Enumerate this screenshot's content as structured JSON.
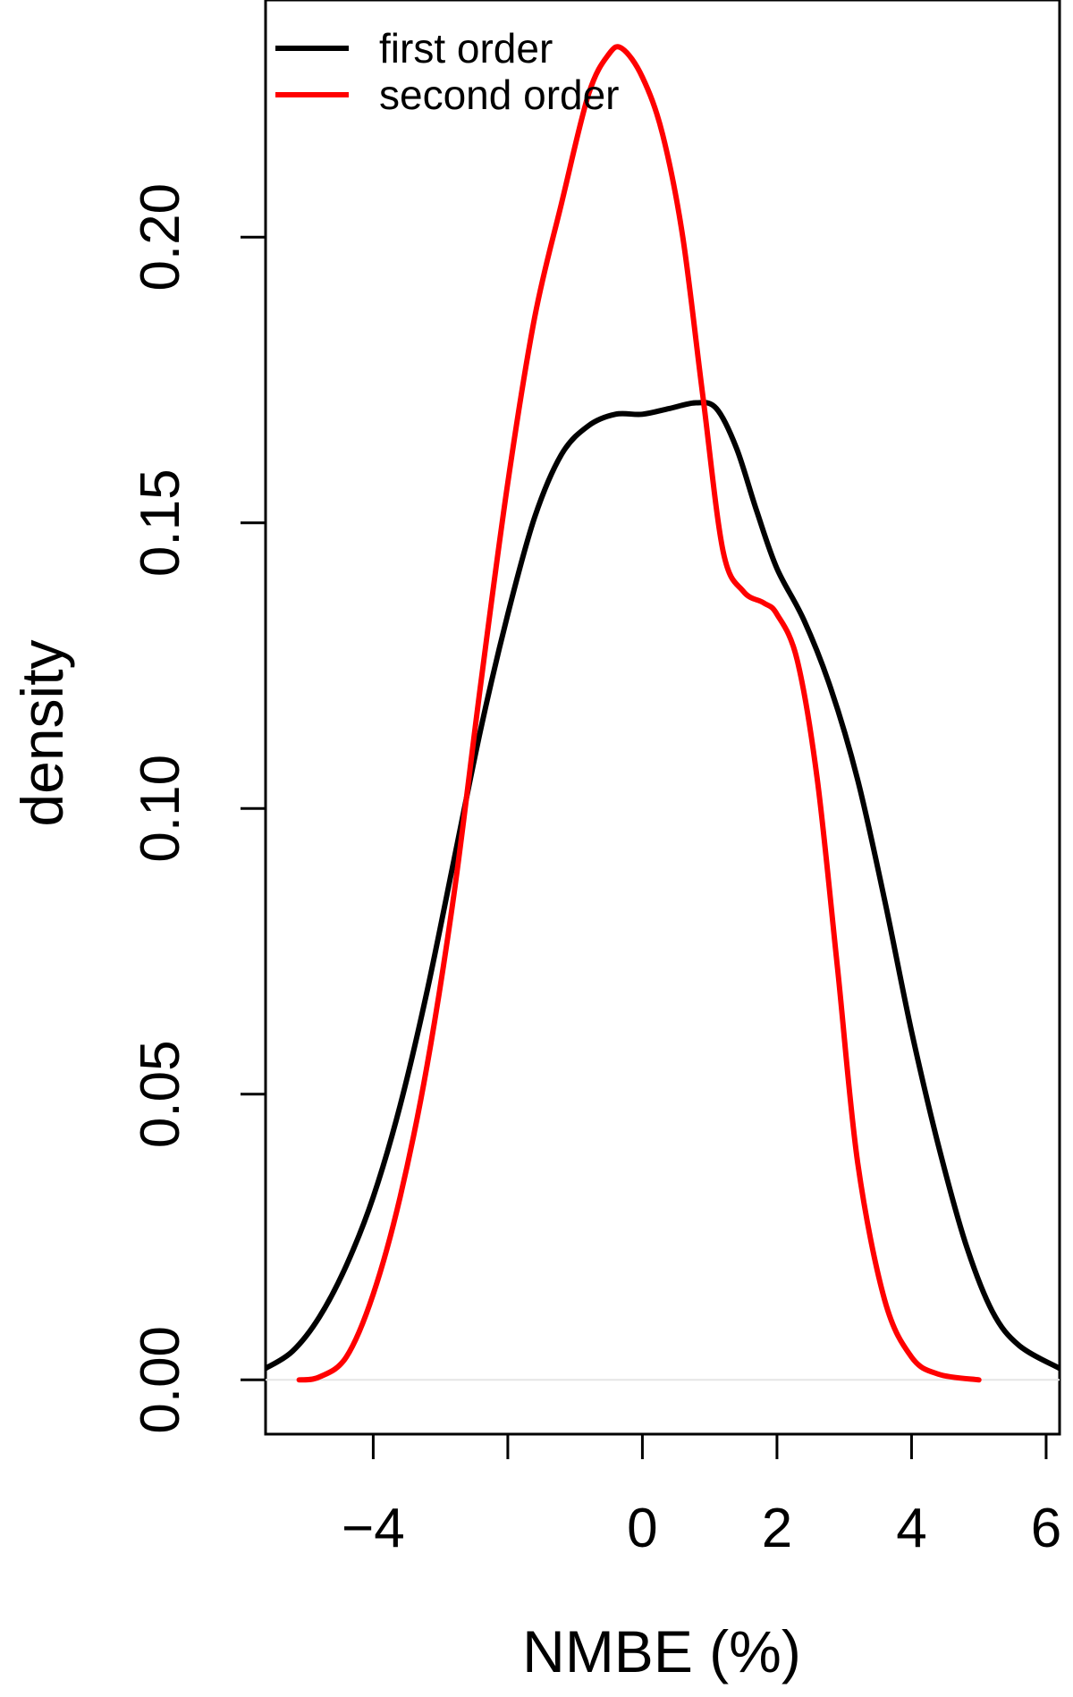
{
  "chart_data": {
    "type": "line",
    "title": "",
    "xlabel": "NMBE (%)",
    "ylabel": "density",
    "xlim": [
      -5.6,
      6.2
    ],
    "ylim": [
      -0.0095,
      0.2415
    ],
    "x_ticks": [
      -4,
      -2,
      0,
      2,
      4,
      6
    ],
    "x_tick_labels": [
      "−4",
      "",
      "0",
      "2",
      "4",
      "6"
    ],
    "y_ticks": [
      0.0,
      0.05,
      0.1,
      0.15,
      0.2
    ],
    "y_tick_labels": [
      "0.00",
      "0.05",
      "0.10",
      "0.15",
      "0.20"
    ],
    "grid": false,
    "baseline_y": 0,
    "legend_position": "top-left",
    "series": [
      {
        "name": "first order",
        "color": "#000000",
        "points": [
          [
            -5.6,
            0.002
          ],
          [
            -5.2,
            0.005
          ],
          [
            -4.8,
            0.011
          ],
          [
            -4.4,
            0.02
          ],
          [
            -4.0,
            0.032
          ],
          [
            -3.6,
            0.048
          ],
          [
            -3.2,
            0.068
          ],
          [
            -2.8,
            0.091
          ],
          [
            -2.4,
            0.114
          ],
          [
            -2.0,
            0.134
          ],
          [
            -1.6,
            0.151
          ],
          [
            -1.2,
            0.162
          ],
          [
            -0.8,
            0.167
          ],
          [
            -0.4,
            0.169
          ],
          [
            0.0,
            0.169
          ],
          [
            0.4,
            0.17
          ],
          [
            0.8,
            0.171
          ],
          [
            1.1,
            0.17
          ],
          [
            1.4,
            0.163
          ],
          [
            1.7,
            0.152
          ],
          [
            2.0,
            0.142
          ],
          [
            2.4,
            0.133
          ],
          [
            2.8,
            0.121
          ],
          [
            3.2,
            0.105
          ],
          [
            3.6,
            0.084
          ],
          [
            4.0,
            0.061
          ],
          [
            4.4,
            0.041
          ],
          [
            4.8,
            0.024
          ],
          [
            5.2,
            0.012
          ],
          [
            5.6,
            0.006
          ],
          [
            6.2,
            0.002
          ]
        ]
      },
      {
        "name": "second order",
        "color": "#ff0000",
        "points": [
          [
            -5.1,
            0.0
          ],
          [
            -4.8,
            0.0005
          ],
          [
            -4.4,
            0.004
          ],
          [
            -4.0,
            0.015
          ],
          [
            -3.6,
            0.032
          ],
          [
            -3.2,
            0.055
          ],
          [
            -2.8,
            0.085
          ],
          [
            -2.4,
            0.122
          ],
          [
            -2.0,
            0.157
          ],
          [
            -1.6,
            0.186
          ],
          [
            -1.2,
            0.206
          ],
          [
            -0.8,
            0.225
          ],
          [
            -0.5,
            0.232
          ],
          [
            -0.3,
            0.233
          ],
          [
            0.0,
            0.228
          ],
          [
            0.3,
            0.218
          ],
          [
            0.6,
            0.2
          ],
          [
            0.9,
            0.172
          ],
          [
            1.2,
            0.145
          ],
          [
            1.5,
            0.138
          ],
          [
            1.8,
            0.136
          ],
          [
            2.0,
            0.134
          ],
          [
            2.3,
            0.126
          ],
          [
            2.6,
            0.105
          ],
          [
            2.9,
            0.072
          ],
          [
            3.2,
            0.038
          ],
          [
            3.6,
            0.014
          ],
          [
            4.0,
            0.004
          ],
          [
            4.4,
            0.001
          ],
          [
            5.0,
            0.0
          ]
        ]
      }
    ]
  }
}
